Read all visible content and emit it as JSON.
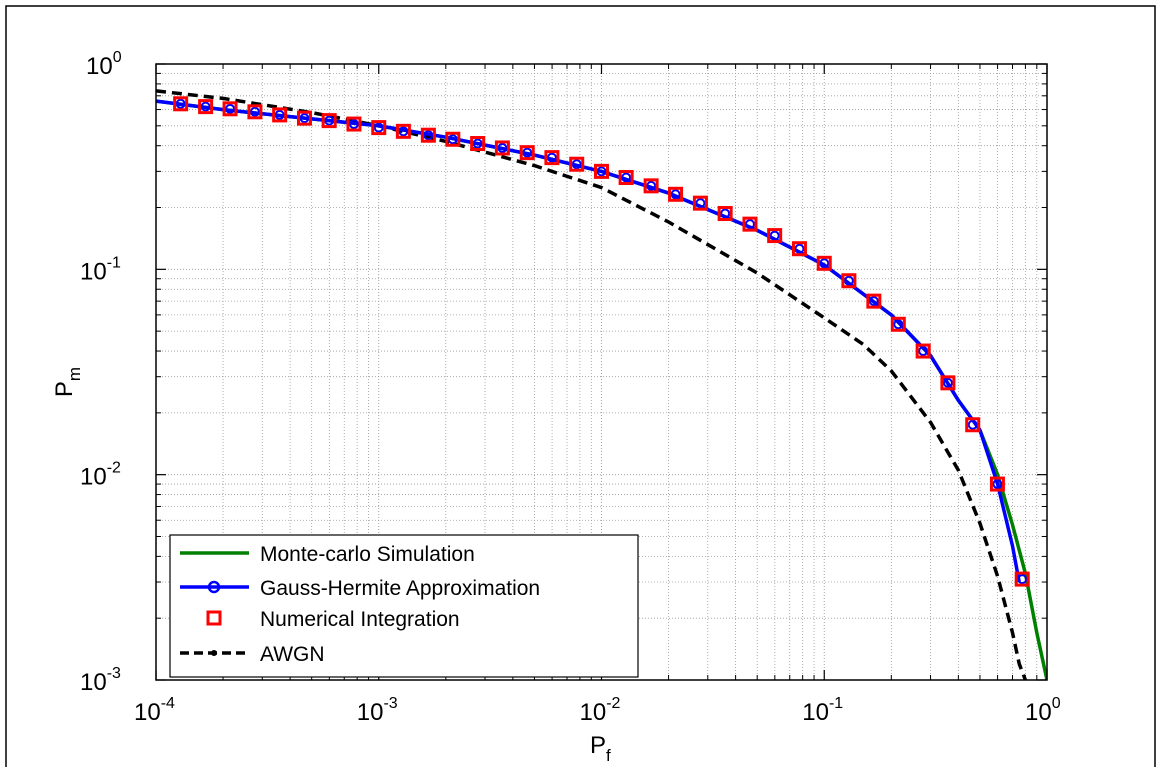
{
  "colors": {
    "monte_carlo": "#008000",
    "gauss_hermite": "#0000ff",
    "numerical": "#ff0000",
    "awgn": "#000000",
    "grid": "#9a9a9a",
    "background": "#ffffff"
  },
  "chart_data": {
    "type": "line",
    "title": "",
    "xlabel": "P",
    "xlabel_sub": "f",
    "ylabel": "P",
    "ylabel_sub": "m",
    "x_scale": "log",
    "y_scale": "log",
    "xlim": [
      0.0001,
      1
    ],
    "ylim": [
      0.001,
      1
    ],
    "grid": true,
    "minor_grid": true,
    "legend_position": "bottom-left",
    "x_ticks": [
      {
        "base": "10",
        "exp": "-4"
      },
      {
        "base": "10",
        "exp": "-3"
      },
      {
        "base": "10",
        "exp": "-2"
      },
      {
        "base": "10",
        "exp": "-1"
      },
      {
        "base": "10",
        "exp": "0"
      }
    ],
    "y_ticks": [
      {
        "base": "10",
        "exp": "0"
      },
      {
        "base": "10",
        "exp": "-1"
      },
      {
        "base": "10",
        "exp": "-2"
      },
      {
        "base": "10",
        "exp": "-3"
      }
    ],
    "series": [
      {
        "name": "Monte-carlo Simulation",
        "style": "solid",
        "color": "#008000",
        "marker": "none",
        "x": [
          0.0001,
          0.0002,
          0.0005,
          0.001,
          0.002,
          0.005,
          0.01,
          0.02,
          0.05,
          0.1,
          0.2,
          0.3,
          0.4,
          0.5,
          0.6,
          0.7,
          0.8,
          0.9,
          1.0
        ],
        "y": [
          0.66,
          0.6,
          0.54,
          0.5,
          0.44,
          0.36,
          0.3,
          0.235,
          0.155,
          0.105,
          0.06,
          0.038,
          0.023,
          0.0165,
          0.01,
          0.0057,
          0.0033,
          0.0017,
          0.001
        ]
      },
      {
        "name": "Gauss-Hermite Approximation",
        "style": "solid",
        "color": "#0000ff",
        "marker": "circle",
        "x": [
          0.0001,
          0.0002,
          0.0005,
          0.001,
          0.002,
          0.005,
          0.01,
          0.02,
          0.05,
          0.1,
          0.2,
          0.3,
          0.4,
          0.5,
          0.6,
          0.7,
          0.75
        ],
        "y": [
          0.66,
          0.6,
          0.54,
          0.5,
          0.44,
          0.36,
          0.3,
          0.235,
          0.155,
          0.105,
          0.06,
          0.038,
          0.023,
          0.0165,
          0.009,
          0.0045,
          0.003
        ]
      },
      {
        "name": "Numerical Integration",
        "style": "none",
        "color": "#ff0000",
        "marker": "square",
        "x": [
          0.000129,
          0.000167,
          0.000215,
          0.000278,
          0.000359,
          0.000464,
          0.000599,
          0.000774,
          0.001,
          0.00129,
          0.00167,
          0.00215,
          0.00278,
          0.00359,
          0.00464,
          0.00599,
          0.00774,
          0.01,
          0.0129,
          0.0167,
          0.0215,
          0.0278,
          0.0359,
          0.0464,
          0.0599,
          0.0774,
          0.1,
          0.129,
          0.167,
          0.215,
          0.278,
          0.359,
          0.464,
          0.599,
          0.774
        ],
        "y": [
          0.64,
          0.62,
          0.605,
          0.585,
          0.565,
          0.545,
          0.53,
          0.51,
          0.49,
          0.47,
          0.45,
          0.43,
          0.41,
          0.39,
          0.37,
          0.35,
          0.325,
          0.3,
          0.28,
          0.255,
          0.232,
          0.21,
          0.187,
          0.166,
          0.146,
          0.126,
          0.107,
          0.088,
          0.07,
          0.054,
          0.04,
          0.028,
          0.0175,
          0.009,
          0.0031
        ]
      },
      {
        "name": "AWGN",
        "style": "dashed",
        "color": "#000000",
        "marker": "dot",
        "x": [
          0.0001,
          0.0002,
          0.0005,
          0.001,
          0.002,
          0.005,
          0.01,
          0.02,
          0.05,
          0.1,
          0.15,
          0.2,
          0.3,
          0.4,
          0.5,
          0.6,
          0.7,
          0.75,
          0.8
        ],
        "y": [
          0.74,
          0.68,
          0.58,
          0.5,
          0.42,
          0.32,
          0.25,
          0.17,
          0.096,
          0.058,
          0.043,
          0.032,
          0.018,
          0.0105,
          0.0058,
          0.0032,
          0.0017,
          0.0012,
          0.001
        ]
      }
    ]
  }
}
